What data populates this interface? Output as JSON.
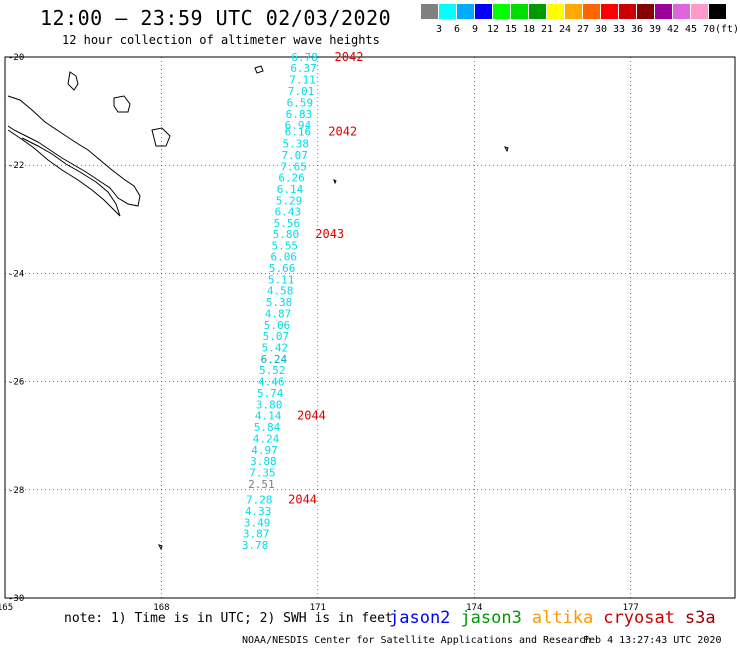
{
  "title": "12:00 – 23:59 UTC 02/03/2020",
  "subtitle": "12 hour collection of altimeter wave heights",
  "colorbar": {
    "unit": "(ft)",
    "colors": [
      "#808080",
      "#00ffff",
      "#00aaff",
      "#0000ff",
      "#00ff00",
      "#00dd00",
      "#009900",
      "#ffff00",
      "#ffaa00",
      "#ff6600",
      "#ff0000",
      "#cc0000",
      "#880000",
      "#990099",
      "#dd66dd",
      "#ff99cc",
      "#000000"
    ],
    "labels": [
      "3",
      "6",
      "9",
      "12",
      "15",
      "18",
      "21",
      "24",
      "27",
      "30",
      "33",
      "36",
      "39",
      "42",
      "45",
      "70"
    ]
  },
  "axes": {
    "lon_ticks": [
      "165",
      "168",
      "171",
      "174",
      "177"
    ],
    "lat_ticks": [
      "-20",
      "-22",
      "-24",
      "-26",
      "-28",
      "-30"
    ],
    "lon_range": [
      165,
      179
    ],
    "lat_range": [
      -30,
      -20
    ]
  },
  "wave_heights": [
    {
      "value": "6.78",
      "lon": 171.0,
      "lat": -20.0,
      "color": "#00ddee"
    },
    {
      "value": "6.37",
      "lon": 170.98,
      "lat": -20.2,
      "color": "#00ddee"
    },
    {
      "value": "7.11",
      "lon": 170.96,
      "lat": -20.42,
      "color": "#00ddee"
    },
    {
      "value": "7.01",
      "lon": 170.93,
      "lat": -20.63,
      "color": "#00ddee"
    },
    {
      "value": "6.59",
      "lon": 170.91,
      "lat": -20.84,
      "color": "#00ddee"
    },
    {
      "value": "6.83",
      "lon": 170.89,
      "lat": -21.05,
      "color": "#00ddee"
    },
    {
      "value": "6.94",
      "lon": 170.87,
      "lat": -21.26,
      "color": "#00ddee"
    },
    {
      "value": "6.16",
      "lon": 170.87,
      "lat": -21.38,
      "color": "#00ddee"
    },
    {
      "value": "5.38",
      "lon": 170.83,
      "lat": -21.6,
      "color": "#00ddee"
    },
    {
      "value": "7.07",
      "lon": 170.81,
      "lat": -21.81,
      "color": "#00ddee"
    },
    {
      "value": "7.65",
      "lon": 170.79,
      "lat": -22.02,
      "color": "#00ddee"
    },
    {
      "value": "6.26",
      "lon": 170.75,
      "lat": -22.23,
      "color": "#00ddee"
    },
    {
      "value": "6.14",
      "lon": 170.72,
      "lat": -22.44,
      "color": "#00ddee"
    },
    {
      "value": "5.29",
      "lon": 170.7,
      "lat": -22.65,
      "color": "#00ddee"
    },
    {
      "value": "6.43",
      "lon": 170.68,
      "lat": -22.86,
      "color": "#00ddee"
    },
    {
      "value": "5.56",
      "lon": 170.66,
      "lat": -23.07,
      "color": "#00ddee"
    },
    {
      "value": "5.80",
      "lon": 170.64,
      "lat": -23.27,
      "color": "#00ddee"
    },
    {
      "value": "5.55",
      "lon": 170.62,
      "lat": -23.48,
      "color": "#00ddee"
    },
    {
      "value": "6.06",
      "lon": 170.6,
      "lat": -23.69,
      "color": "#00ddee"
    },
    {
      "value": "5.66",
      "lon": 170.57,
      "lat": -23.9,
      "color": "#00ddee"
    },
    {
      "value": "5.11",
      "lon": 170.55,
      "lat": -24.11,
      "color": "#00ddee"
    },
    {
      "value": "4.58",
      "lon": 170.53,
      "lat": -24.32,
      "color": "#00ddee"
    },
    {
      "value": "5.38",
      "lon": 170.51,
      "lat": -24.53,
      "color": "#00ddee"
    },
    {
      "value": "4.87",
      "lon": 170.49,
      "lat": -24.74,
      "color": "#00ddee"
    },
    {
      "value": "5.06",
      "lon": 170.47,
      "lat": -24.95,
      "color": "#00ddee"
    },
    {
      "value": "5.07",
      "lon": 170.45,
      "lat": -25.16,
      "color": "#00ddee"
    },
    {
      "value": "5.42",
      "lon": 170.43,
      "lat": -25.37,
      "color": "#00ddee"
    },
    {
      "value": "6.24",
      "lon": 170.41,
      "lat": -25.58,
      "color": "#00aacc"
    },
    {
      "value": "5.52",
      "lon": 170.38,
      "lat": -25.79,
      "color": "#00ddee"
    },
    {
      "value": "4.46",
      "lon": 170.36,
      "lat": -26.0,
      "color": "#00ddee"
    },
    {
      "value": "5.74",
      "lon": 170.34,
      "lat": -26.21,
      "color": "#00ddee"
    },
    {
      "value": "3.80",
      "lon": 170.32,
      "lat": -26.42,
      "color": "#00ddee"
    },
    {
      "value": "4.14",
      "lon": 170.3,
      "lat": -26.63,
      "color": "#00ddee"
    },
    {
      "value": "5.84",
      "lon": 170.28,
      "lat": -26.84,
      "color": "#00ddee"
    },
    {
      "value": "4.24",
      "lon": 170.26,
      "lat": -27.05,
      "color": "#00ddee"
    },
    {
      "value": "4.97",
      "lon": 170.23,
      "lat": -27.26,
      "color": "#00ddee"
    },
    {
      "value": "3.88",
      "lon": 170.21,
      "lat": -27.47,
      "color": "#00ddee"
    },
    {
      "value": "7.35",
      "lon": 170.19,
      "lat": -27.68,
      "color": "#00ddee"
    },
    {
      "value": "2.51",
      "lon": 170.17,
      "lat": -27.89,
      "color": "#808080"
    },
    {
      "value": "7.28",
      "lon": 170.13,
      "lat": -28.18,
      "color": "#00ddee"
    },
    {
      "value": "4.33",
      "lon": 170.11,
      "lat": -28.39,
      "color": "#00ddee"
    },
    {
      "value": "3.49",
      "lon": 170.09,
      "lat": -28.6,
      "color": "#00ddee"
    },
    {
      "value": "3.87",
      "lon": 170.07,
      "lat": -28.81,
      "color": "#00ddee"
    },
    {
      "value": "3.78",
      "lon": 170.05,
      "lat": -29.02,
      "color": "#00ddee"
    }
  ],
  "time_labels": [
    {
      "text": "2042",
      "lon": 171.32,
      "lat": -20.0
    },
    {
      "text": "2042",
      "lon": 171.2,
      "lat": -21.38
    },
    {
      "text": "2043",
      "lon": 170.95,
      "lat": -23.27
    },
    {
      "text": "2044",
      "lon": 170.6,
      "lat": -26.63
    },
    {
      "text": "2044",
      "lon": 170.43,
      "lat": -28.18
    }
  ],
  "note": "note: 1) Time is in UTC; 2) SWH is in feet",
  "legend": [
    {
      "label": "jason2",
      "color": "#0000ff"
    },
    {
      "label": "jason3",
      "color": "#009900"
    },
    {
      "label": "altika",
      "color": "#ff9900"
    },
    {
      "label": "cryosat",
      "color": "#cc0000"
    },
    {
      "label": "s3a",
      "color": "#990000"
    }
  ],
  "credit": "NOAA/NESDIS Center for Satellite Applications and Research",
  "timestamp": "Feb  4 13:27:43 UTC 2020"
}
